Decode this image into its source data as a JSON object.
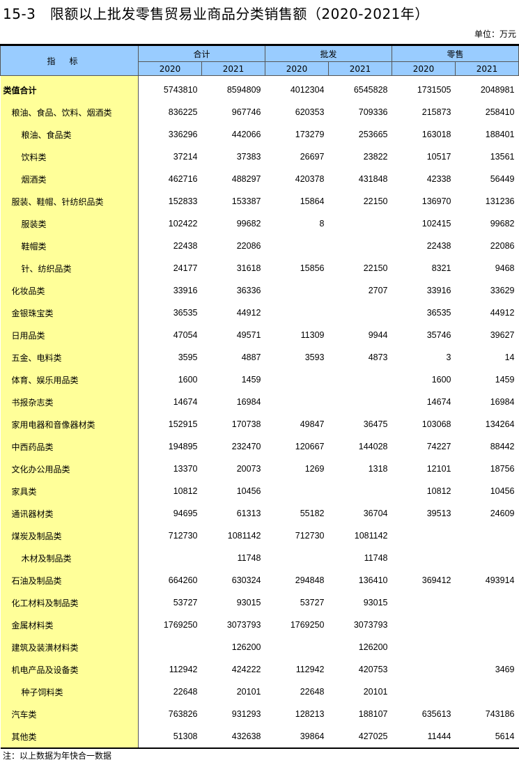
{
  "title": "15-3　限额以上批发零售贸易业商品分类销售额（2020-2021年）",
  "unit": "单位：万元",
  "header": {
    "indicator": "指标",
    "groups": [
      "合计",
      "批发",
      "零售"
    ],
    "years": [
      "2020",
      "2021",
      "2020",
      "2021",
      "2020",
      "2021"
    ]
  },
  "rows": [
    {
      "label": "类值合计",
      "level": 0,
      "bold": true,
      "values": [
        "5743810",
        "8594809",
        "4012304",
        "6545828",
        "1731505",
        "2048981"
      ]
    },
    {
      "label": "粮油、食品、饮料、烟酒类",
      "level": 1,
      "values": [
        "836225",
        "967746",
        "620353",
        "709336",
        "215873",
        "258410"
      ]
    },
    {
      "label": "粮油、食品类",
      "level": 2,
      "values": [
        "336296",
        "442066",
        "173279",
        "253665",
        "163018",
        "188401"
      ]
    },
    {
      "label": "饮料类",
      "level": 2,
      "values": [
        "37214",
        "37383",
        "26697",
        "23822",
        "10517",
        "13561"
      ]
    },
    {
      "label": "烟酒类",
      "level": 2,
      "values": [
        "462716",
        "488297",
        "420378",
        "431848",
        "42338",
        "56449"
      ]
    },
    {
      "label": "服装、鞋帽、针纺织品类",
      "level": 1,
      "values": [
        "152833",
        "153387",
        "15864",
        "22150",
        "136970",
        "131236"
      ]
    },
    {
      "label": "服装类",
      "level": 2,
      "values": [
        "102422",
        "99682",
        "8",
        "",
        "102415",
        "99682"
      ]
    },
    {
      "label": "鞋帽类",
      "level": 2,
      "values": [
        "22438",
        "22086",
        "",
        "",
        "22438",
        "22086"
      ]
    },
    {
      "label": "针、纺织品类",
      "level": 2,
      "values": [
        "24177",
        "31618",
        "15856",
        "22150",
        "8321",
        "9468"
      ]
    },
    {
      "label": "化妆品类",
      "level": 1,
      "values": [
        "33916",
        "36336",
        "",
        "2707",
        "33916",
        "33629"
      ]
    },
    {
      "label": "金银珠宝类",
      "level": 1,
      "values": [
        "36535",
        "44912",
        "",
        "",
        "36535",
        "44912"
      ]
    },
    {
      "label": "日用品类",
      "level": 1,
      "values": [
        "47054",
        "49571",
        "11309",
        "9944",
        "35746",
        "39627"
      ]
    },
    {
      "label": "五金、电料类",
      "level": 1,
      "values": [
        "3595",
        "4887",
        "3593",
        "4873",
        "3",
        "14"
      ]
    },
    {
      "label": "体育、娱乐用品类",
      "level": 1,
      "values": [
        "1600",
        "1459",
        "",
        "",
        "1600",
        "1459"
      ]
    },
    {
      "label": "书报杂志类",
      "level": 1,
      "values": [
        "14674",
        "16984",
        "",
        "",
        "14674",
        "16984"
      ]
    },
    {
      "label": "家用电器和音像器材类",
      "level": 1,
      "values": [
        "152915",
        "170738",
        "49847",
        "36475",
        "103068",
        "134264"
      ]
    },
    {
      "label": "中西药品类",
      "level": 1,
      "values": [
        "194895",
        "232470",
        "120667",
        "144028",
        "74227",
        "88442"
      ]
    },
    {
      "label": "文化办公用品类",
      "level": 1,
      "values": [
        "13370",
        "20073",
        "1269",
        "1318",
        "12101",
        "18756"
      ]
    },
    {
      "label": "家具类",
      "level": 1,
      "values": [
        "10812",
        "10456",
        "",
        "",
        "10812",
        "10456"
      ]
    },
    {
      "label": "通讯器材类",
      "level": 1,
      "values": [
        "94695",
        "61313",
        "55182",
        "36704",
        "39513",
        "24609"
      ]
    },
    {
      "label": "煤炭及制品类",
      "level": 1,
      "values": [
        "712730",
        "1081142",
        "712730",
        "1081142",
        "",
        ""
      ]
    },
    {
      "label": "木材及制品类",
      "level": 2,
      "values": [
        "",
        "11748",
        "",
        "11748",
        "",
        ""
      ]
    },
    {
      "label": "石油及制品类",
      "level": 1,
      "values": [
        "664260",
        "630324",
        "294848",
        "136410",
        "369412",
        "493914"
      ]
    },
    {
      "label": "化工材料及制品类",
      "level": 1,
      "values": [
        "53727",
        "93015",
        "53727",
        "93015",
        "",
        ""
      ]
    },
    {
      "label": "金属材料类",
      "level": 1,
      "values": [
        "1769250",
        "3073793",
        "1769250",
        "3073793",
        "",
        ""
      ]
    },
    {
      "label": "建筑及装潢材料类",
      "level": 1,
      "values": [
        "",
        "126200",
        "",
        "126200",
        "",
        ""
      ]
    },
    {
      "label": "机电产品及设备类",
      "level": 1,
      "values": [
        "112942",
        "424222",
        "112942",
        "420753",
        "",
        "3469"
      ]
    },
    {
      "label": "种子饲料类",
      "level": 2,
      "values": [
        "22648",
        "20101",
        "22648",
        "20101",
        "",
        ""
      ]
    },
    {
      "label": "汽车类",
      "level": 1,
      "values": [
        "763826",
        "931293",
        "128213",
        "188107",
        "635613",
        "743186"
      ]
    },
    {
      "label": "其他类",
      "level": 1,
      "values": [
        "51308",
        "432638",
        "39864",
        "427025",
        "11444",
        "5614"
      ]
    }
  ],
  "note": "注：以上数据为年快合一数据",
  "colors": {
    "header_bg": "#99ccff",
    "label_bg": "#ffff99"
  }
}
